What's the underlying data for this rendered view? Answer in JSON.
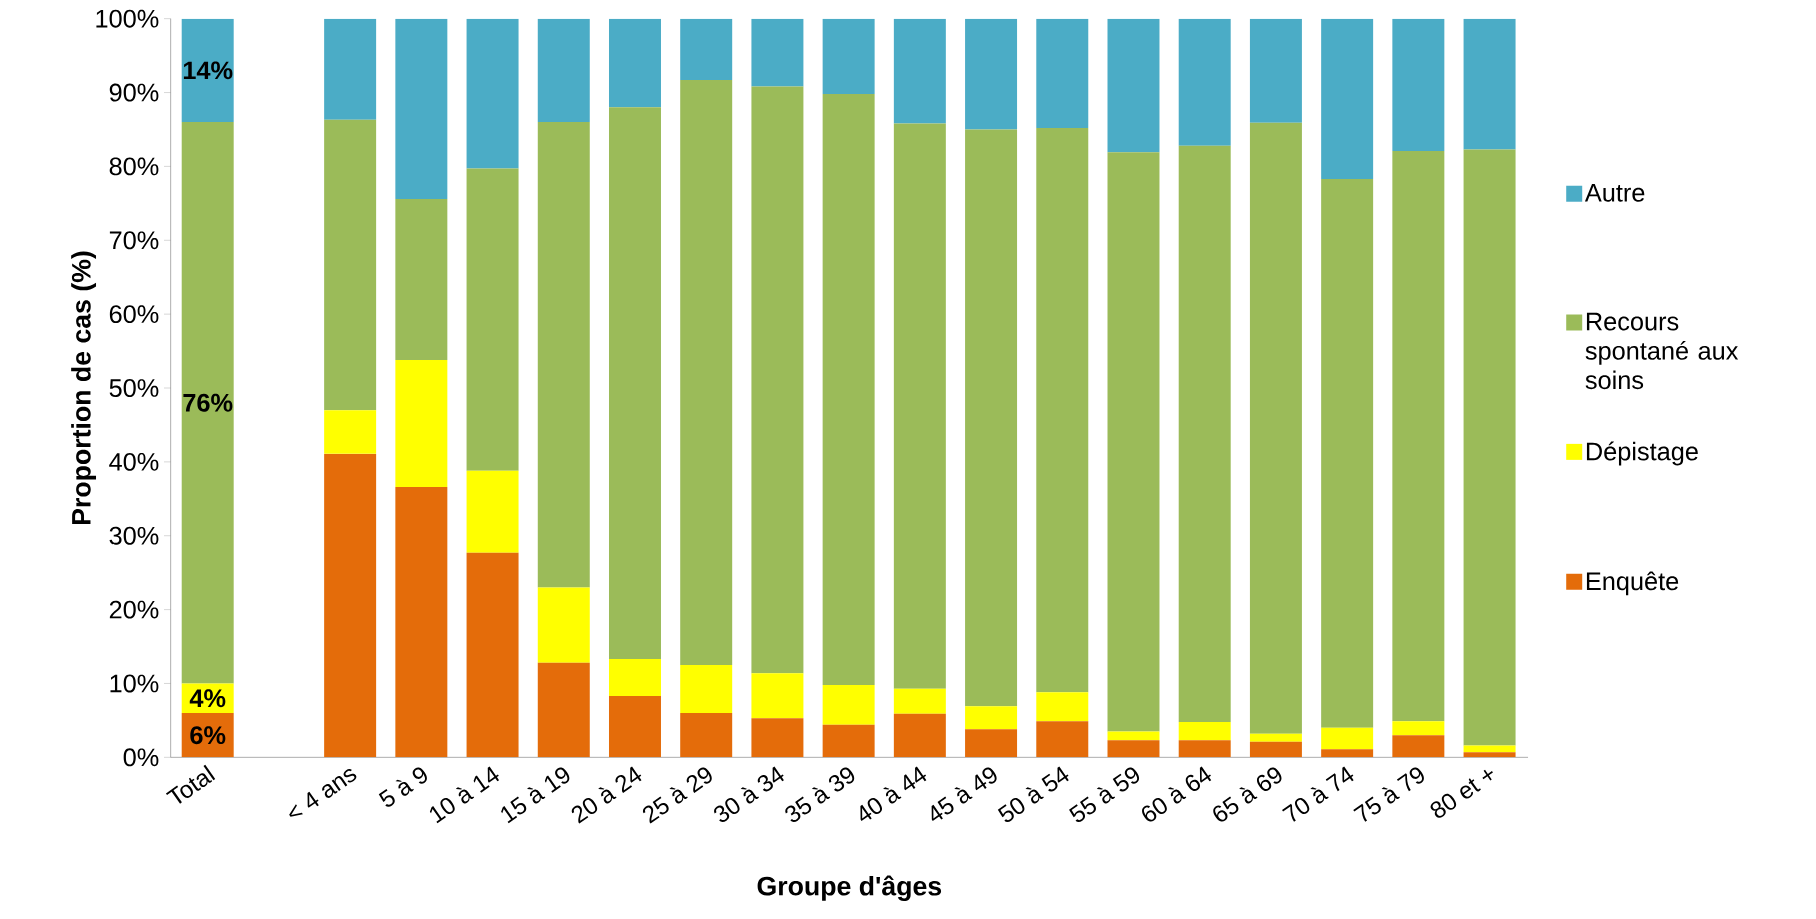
{
  "chart_data": {
    "type": "bar",
    "stacked": true,
    "xlabel": "Groupe d'âges",
    "ylabel": "Proportion de cas (%)",
    "categories": [
      "Total",
      null,
      "< 4 ans",
      "5 à 9",
      "10 à 14",
      "15 à 19",
      "20 à 24",
      "25 à 29",
      "30 à 34",
      "35 à 39",
      "40 à 44",
      "45 à 49",
      "50 à 54",
      "55 à 59",
      "60 à 64",
      "65 à 69",
      "70 à 74",
      "75 à 79",
      "80  et +"
    ],
    "series": [
      {
        "name": "Enquête",
        "color": "#e46c0a",
        "values": [
          6,
          null,
          41.1,
          36.6,
          27.7,
          12.8,
          8.3,
          6.0,
          5.3,
          4.4,
          5.9,
          3.8,
          4.9,
          2.3,
          2.3,
          2.1,
          1.1,
          3.0,
          0.7
        ],
        "value_labels": [
          "6%",
          null,
          null,
          null,
          null,
          null,
          null,
          null,
          null,
          null,
          null,
          null,
          null,
          null,
          null,
          null,
          null,
          null,
          null
        ]
      },
      {
        "name": "Dépistage",
        "color": "#ffff00",
        "values": [
          4,
          null,
          5.9,
          17.2,
          11.1,
          10.2,
          5.0,
          6.5,
          6.1,
          5.4,
          3.4,
          3.1,
          3.9,
          1.2,
          2.5,
          1.1,
          2.9,
          1.9,
          0.9
        ],
        "value_labels": [
          "4%",
          null,
          null,
          null,
          null,
          null,
          null,
          null,
          null,
          null,
          null,
          null,
          null,
          null,
          null,
          null,
          null,
          null,
          null
        ]
      },
      {
        "name": "Recours spontané aux soins",
        "color": "#9bbb59",
        "values": [
          76,
          null,
          39.3,
          21.8,
          40.9,
          63.0,
          74.7,
          79.2,
          79.4,
          80.0,
          76.5,
          78.1,
          76.4,
          78.4,
          78.0,
          82.7,
          74.3,
          77.2,
          80.7
        ],
        "value_labels": [
          "76%",
          null,
          null,
          null,
          null,
          null,
          null,
          null,
          null,
          null,
          null,
          null,
          null,
          null,
          null,
          null,
          null,
          null,
          null
        ]
      },
      {
        "name": "Autre",
        "color": "#4bacc6",
        "values": [
          14,
          null,
          13.7,
          24.4,
          20.3,
          14.0,
          12.0,
          8.3,
          9.2,
          10.2,
          14.2,
          15.0,
          14.8,
          18.1,
          17.2,
          14.1,
          21.7,
          17.9,
          17.7
        ],
        "value_labels": [
          "14%",
          null,
          null,
          null,
          null,
          null,
          null,
          null,
          null,
          null,
          null,
          null,
          null,
          null,
          null,
          null,
          null,
          null,
          null
        ]
      }
    ],
    "ylim": [
      0,
      100
    ],
    "yticks": [
      {
        "value": 0,
        "label": "0%"
      },
      {
        "value": 10,
        "label": "10%"
      },
      {
        "value": 20,
        "label": "20%"
      },
      {
        "value": 30,
        "label": "30%"
      },
      {
        "value": 40,
        "label": "40%"
      },
      {
        "value": 50,
        "label": "50%"
      },
      {
        "value": 60,
        "label": "60%"
      },
      {
        "value": 70,
        "label": "70%"
      },
      {
        "value": 80,
        "label": "80%"
      },
      {
        "value": 90,
        "label": "90%"
      },
      {
        "value": 100,
        "label": "100%"
      }
    ],
    "grid": false,
    "legend": "right"
  }
}
